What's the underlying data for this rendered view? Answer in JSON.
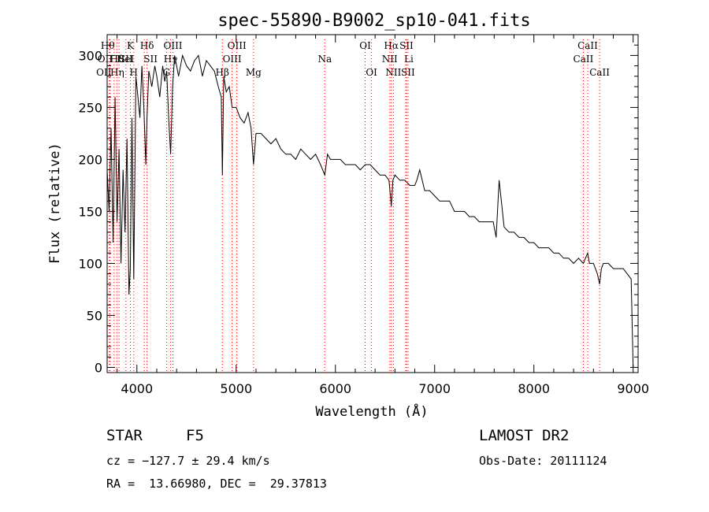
{
  "chart_data": {
    "type": "line",
    "title": "spec-55890-B9002_sp10-041.fits",
    "xlabel": "Wavelength (Å)",
    "ylabel": "Flux (relative)",
    "xlim": [
      3700,
      9050
    ],
    "ylim": [
      -5,
      320
    ],
    "xticks": [
      4000,
      5000,
      6000,
      7000,
      8000,
      9000
    ],
    "yticks": [
      0,
      50,
      100,
      150,
      200,
      250,
      300
    ],
    "grid": false,
    "spectrum": {
      "x": [
        3700,
        3720,
        3740,
        3760,
        3780,
        3800,
        3820,
        3840,
        3860,
        3880,
        3900,
        3920,
        3933,
        3950,
        3968,
        3990,
        4010,
        4030,
        4050,
        4070,
        4090,
        4102,
        4120,
        4150,
        4180,
        4200,
        4230,
        4260,
        4280,
        4300,
        4320,
        4340,
        4360,
        4380,
        4420,
        4460,
        4500,
        4540,
        4580,
        4620,
        4660,
        4700,
        4740,
        4780,
        4820,
        4850,
        4861,
        4875,
        4900,
        4930,
        4960,
        5000,
        5040,
        5080,
        5120,
        5150,
        5175,
        5200,
        5250,
        5300,
        5350,
        5400,
        5450,
        5500,
        5550,
        5600,
        5650,
        5700,
        5750,
        5800,
        5850,
        5893,
        5920,
        5950,
        6000,
        6050,
        6100,
        6150,
        6200,
        6250,
        6300,
        6350,
        6400,
        6450,
        6500,
        6540,
        6563,
        6580,
        6600,
        6650,
        6700,
        6750,
        6800,
        6820,
        6850,
        6900,
        6950,
        7000,
        7050,
        7100,
        7150,
        7200,
        7250,
        7300,
        7350,
        7400,
        7450,
        7500,
        7550,
        7590,
        7600,
        7610,
        7620,
        7650,
        7700,
        7750,
        7800,
        7850,
        7900,
        7950,
        8000,
        8050,
        8100,
        8150,
        8200,
        8250,
        8300,
        8350,
        8400,
        8450,
        8498,
        8520,
        8542,
        8560,
        8600,
        8640,
        8662,
        8680,
        8700,
        8750,
        8800,
        8850,
        8900,
        8940,
        8980,
        9000
      ],
      "y": [
        190,
        150,
        230,
        120,
        260,
        140,
        210,
        100,
        190,
        130,
        220,
        70,
        95,
        240,
        85,
        280,
        260,
        240,
        290,
        250,
        195,
        240,
        285,
        270,
        290,
        280,
        260,
        290,
        275,
        285,
        240,
        205,
        270,
        300,
        280,
        300,
        290,
        285,
        295,
        300,
        280,
        295,
        290,
        285,
        270,
        260,
        185,
        280,
        265,
        270,
        250,
        250,
        240,
        235,
        245,
        230,
        195,
        225,
        225,
        220,
        215,
        220,
        210,
        205,
        205,
        200,
        210,
        205,
        200,
        205,
        195,
        185,
        205,
        200,
        200,
        200,
        195,
        195,
        195,
        190,
        195,
        195,
        190,
        185,
        185,
        180,
        155,
        180,
        185,
        180,
        180,
        175,
        175,
        180,
        190,
        170,
        170,
        165,
        160,
        160,
        160,
        150,
        150,
        150,
        145,
        145,
        140,
        140,
        140,
        140,
        135,
        130,
        125,
        180,
        135,
        130,
        130,
        125,
        125,
        120,
        120,
        115,
        115,
        115,
        110,
        110,
        105,
        105,
        100,
        105,
        100,
        105,
        110,
        100,
        100,
        90,
        80,
        95,
        100,
        100,
        95,
        95,
        95,
        90,
        85,
        0
      ]
    },
    "lines": [
      {
        "x": 3722,
        "label": "Hθ",
        "row": 0,
        "dx": -2
      },
      {
        "x": 3727,
        "label": "OII",
        "row": 1,
        "dx": -6
      },
      {
        "x": 3730,
        "label": "OII",
        "row": 2,
        "dx": -8
      },
      {
        "x": 3770,
        "label": "Hη",
        "row": 2,
        "dx": 4
      },
      {
        "x": 3798,
        "label": "Hθ",
        "row": 1,
        "dx": 0
      },
      {
        "x": 3820,
        "label": "HeI",
        "row": 1,
        "dx": 8
      },
      {
        "x": 3889,
        "label": "SII",
        "row": 1,
        "dx": 0
      },
      {
        "x": 3934,
        "label": "K",
        "row": 0,
        "dx": 0
      },
      {
        "x": 3968,
        "label": "H",
        "row": 2,
        "dx": 0
      },
      {
        "x": 4102,
        "label": "Hδ",
        "row": 0,
        "dx": 0
      },
      {
        "x": 4074,
        "label": "SII",
        "row": 1,
        "dx": 8
      },
      {
        "x": 4300,
        "label": "G",
        "row": 2,
        "dx": 0
      },
      {
        "x": 4340,
        "label": "Hγ",
        "row": 1,
        "dx": 0
      },
      {
        "x": 4363,
        "label": "OIII",
        "row": 0,
        "dx": 0
      },
      {
        "x": 4861,
        "label": "Hβ",
        "row": 2,
        "dx": 0
      },
      {
        "x": 4959,
        "label": "OIII",
        "row": 1,
        "dx": 0
      },
      {
        "x": 5007,
        "label": "OIII",
        "row": 0,
        "dx": 0
      },
      {
        "x": 5175,
        "label": "Mg",
        "row": 2,
        "dx": 0
      },
      {
        "x": 5893,
        "label": "Na",
        "row": 1,
        "dx": 0
      },
      {
        "x": 6300,
        "label": "OI",
        "row": 0,
        "dx": 0
      },
      {
        "x": 6364,
        "label": "OI",
        "row": 2,
        "dx": 0
      },
      {
        "x": 6548,
        "label": "NII",
        "row": 1,
        "dx": 0
      },
      {
        "x": 6563,
        "label": "Hα",
        "row": 0,
        "dx": 0
      },
      {
        "x": 6584,
        "label": "NII",
        "row": 2,
        "dx": 0
      },
      {
        "x": 6716,
        "label": "SII",
        "row": 0,
        "dx": 0
      },
      {
        "x": 6731,
        "label": "SII",
        "row": 2,
        "dx": 0
      },
      {
        "x": 6708,
        "label": "Li",
        "row": 1,
        "dx": 4
      },
      {
        "x": 8498,
        "label": "CaII",
        "row": 1,
        "dx": 0
      },
      {
        "x": 8542,
        "label": "CaII",
        "row": 0,
        "dx": 0
      },
      {
        "x": 8662,
        "label": "CaII",
        "row": 2,
        "dx": 0
      }
    ],
    "line_color": "#ff0000",
    "spectrum_color": "#000000"
  },
  "info": {
    "class": "STAR",
    "subclass": "F5",
    "survey": "LAMOST DR2",
    "cz": "cz = −127.7 ± 29.4 km/s",
    "obs_date": "Obs-Date: 20111124",
    "coords": "RA =  13.66980, DEC =  29.37813"
  }
}
